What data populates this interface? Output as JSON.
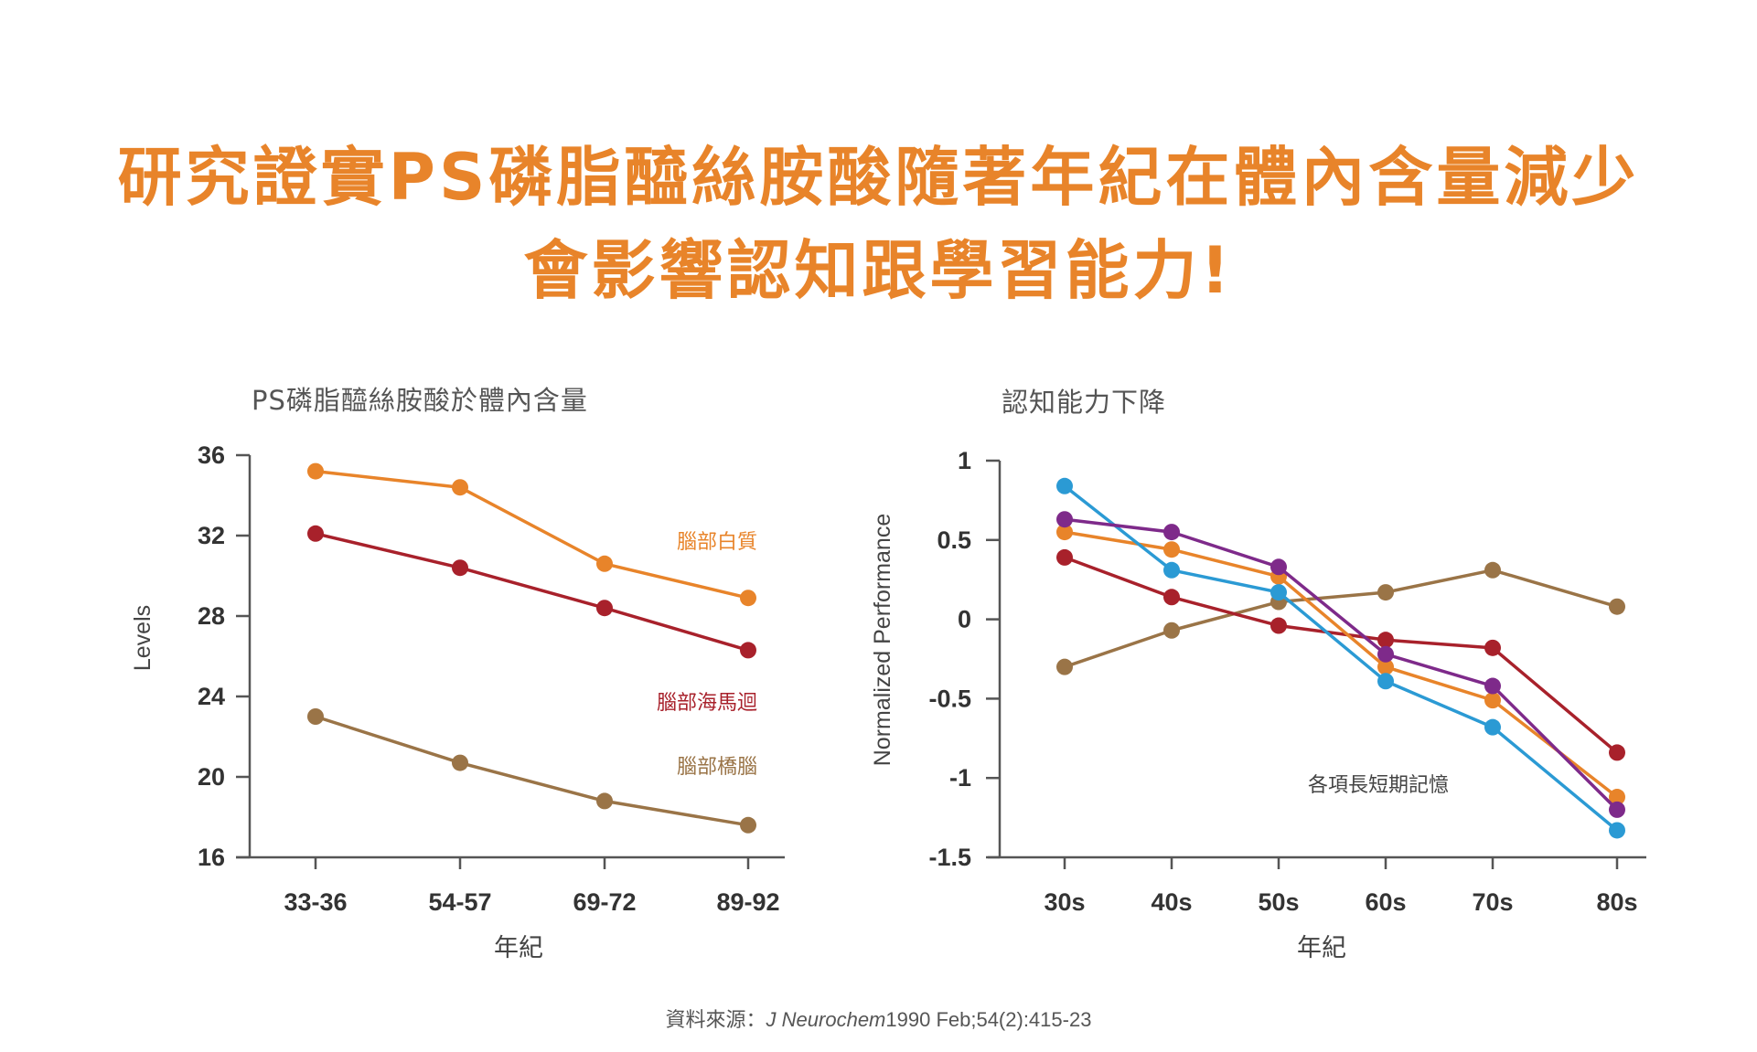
{
  "headline": {
    "line1": "研究證實PS磷脂醯絲胺酸隨著年紀在體內含量減少",
    "line2": "會影響認知跟學習能力!"
  },
  "source": {
    "label": "資料來源：",
    "journal": "J Neurochem",
    "citation": "1990 Feb;54(2):415-23"
  },
  "chart_data": [
    {
      "type": "line",
      "title": "PS磷脂醯絲胺酸於體內含量",
      "xlabel": "年紀",
      "ylabel": "Levels",
      "categories": [
        "33-36",
        "54-57",
        "69-72",
        "89-92"
      ],
      "ylim": [
        16,
        36
      ],
      "yticks": [
        16,
        20,
        24,
        28,
        32,
        36
      ],
      "grid": false,
      "series": [
        {
          "name": "腦部白質",
          "color": "#e8842a",
          "values": [
            35.2,
            34.4,
            30.6,
            28.9
          ]
        },
        {
          "name": "腦部海馬迴",
          "color": "#a8212b",
          "values": [
            32.1,
            30.4,
            28.4,
            26.3
          ]
        },
        {
          "name": "腦部橋腦",
          "color": "#9a7447",
          "values": [
            23.0,
            20.7,
            18.8,
            17.6
          ]
        }
      ]
    },
    {
      "type": "line",
      "title": "認知能力下降",
      "xlabel": "年紀",
      "ylabel": "Normalized Performance",
      "categories": [
        "30s",
        "40s",
        "50s",
        "60s",
        "70s",
        "80s"
      ],
      "ylim": [
        -1.5,
        1
      ],
      "yticks": [
        "1",
        "0.5",
        "0",
        "-0.5",
        "-1",
        "-1.5"
      ],
      "annotation": "各項長短期記憶",
      "grid": false,
      "series": [
        {
          "color": "#9a7447",
          "values": [
            -0.3,
            -0.07,
            0.11,
            0.17,
            0.31,
            0.08
          ]
        },
        {
          "color": "#a8212b",
          "values": [
            0.39,
            0.14,
            -0.04,
            -0.13,
            -0.18,
            -0.84
          ]
        },
        {
          "color": "#e8842a",
          "values": [
            0.55,
            0.44,
            0.27,
            -0.3,
            -0.51,
            -1.12
          ]
        },
        {
          "color": "#2b9ad4",
          "values": [
            0.84,
            0.31,
            0.17,
            -0.39,
            -0.68,
            -1.33
          ]
        },
        {
          "color": "#7e2a8a",
          "values": [
            0.63,
            0.55,
            0.33,
            -0.22,
            -0.42,
            -1.2
          ]
        }
      ]
    }
  ]
}
